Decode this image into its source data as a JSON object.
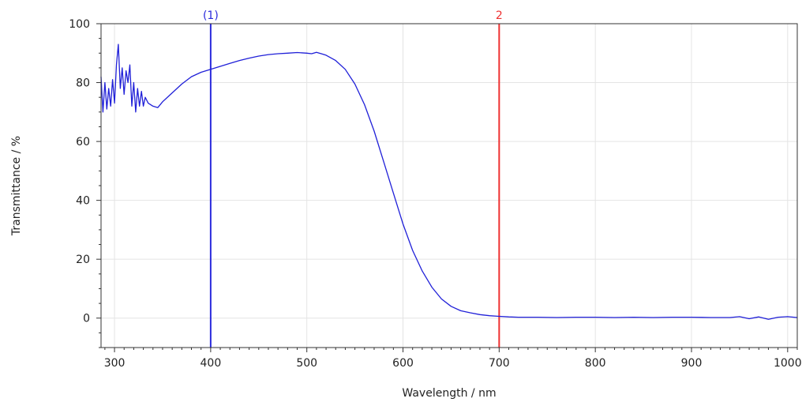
{
  "chart_data": {
    "type": "line",
    "title": "",
    "xlabel": "Wavelength / nm",
    "ylabel": "Transmittance / %",
    "xlim": [
      286,
      1010
    ],
    "ylim": [
      -10,
      100
    ],
    "x_ticks": [
      300,
      400,
      500,
      600,
      700,
      800,
      900,
      1000
    ],
    "y_ticks": [
      0,
      20,
      40,
      60,
      80,
      100
    ],
    "grid": true,
    "legend": "none",
    "series": [
      {
        "color": "#2020d8",
        "x": [
          286,
          288,
          290,
          292,
          294,
          296,
          298,
          300,
          302,
          304,
          306,
          308,
          310,
          312,
          314,
          316,
          318,
          320,
          322,
          324,
          326,
          328,
          330,
          332,
          335,
          340,
          345,
          350,
          360,
          370,
          380,
          390,
          400,
          410,
          420,
          430,
          440,
          450,
          460,
          470,
          480,
          490,
          500,
          505,
          510,
          515,
          520,
          530,
          540,
          550,
          560,
          570,
          580,
          590,
          600,
          610,
          620,
          630,
          640,
          650,
          660,
          670,
          680,
          690,
          700,
          710,
          720,
          730,
          740,
          760,
          780,
          800,
          820,
          840,
          860,
          880,
          900,
          920,
          940,
          950,
          960,
          970,
          980,
          990,
          1000,
          1010
        ],
        "y": [
          82,
          70,
          80,
          71,
          78,
          72,
          81,
          73,
          86,
          93,
          78,
          85,
          76,
          84,
          80,
          86,
          72,
          80,
          70,
          78,
          72,
          77,
          72,
          75,
          73,
          72,
          71.5,
          73.5,
          76.5,
          79.5,
          82,
          83.5,
          84.5,
          85.5,
          86.5,
          87.5,
          88.3,
          89,
          89.5,
          89.8,
          90,
          90.2,
          90,
          89.8,
          90.3,
          89.8,
          89.3,
          87.5,
          84.5,
          79.5,
          72.5,
          63.5,
          53,
          42.5,
          32,
          23,
          16,
          10.5,
          6.5,
          4,
          2.5,
          1.8,
          1.2,
          0.8,
          0.6,
          0.4,
          0.3,
          0.3,
          0.3,
          0.2,
          0.3,
          0.3,
          0.2,
          0.3,
          0.2,
          0.3,
          0.3,
          0.2,
          0.2,
          0.5,
          -0.2,
          0.4,
          -0.4,
          0.3,
          0.5,
          0.2
        ]
      }
    ],
    "markers": [
      {
        "label": "(1)",
        "x": 400,
        "color": "#2a2adc"
      },
      {
        "label": "2",
        "x": 700,
        "color": "#ee3030"
      }
    ]
  }
}
